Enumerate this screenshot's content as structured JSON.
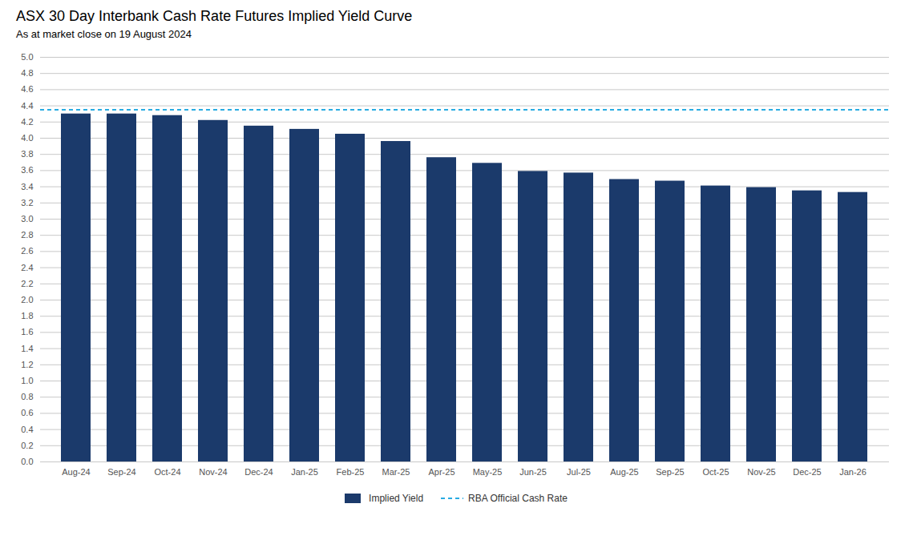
{
  "chart_data": {
    "type": "bar",
    "title": "ASX 30 Day Interbank Cash Rate Futures Implied Yield Curve",
    "subtitle": "As at market close on 19 August 2024",
    "categories": [
      "Aug-24",
      "Sep-24",
      "Oct-24",
      "Nov-24",
      "Dec-24",
      "Jan-25",
      "Feb-25",
      "Mar-25",
      "Apr-25",
      "May-25",
      "Jun-25",
      "Jul-25",
      "Aug-25",
      "Sep-25",
      "Oct-25",
      "Nov-25",
      "Dec-25",
      "Jan-26"
    ],
    "series": [
      {
        "name": "Implied Yield",
        "type": "bar",
        "color": "#1B3A6B",
        "values": [
          4.3,
          4.3,
          4.28,
          4.22,
          4.15,
          4.11,
          4.05,
          3.96,
          3.76,
          3.69,
          3.59,
          3.57,
          3.49,
          3.47,
          3.41,
          3.39,
          3.35,
          3.33
        ]
      },
      {
        "name": "RBA Official Cash Rate",
        "type": "line",
        "line_style": "dashed",
        "color": "#29ABE2",
        "values": [
          4.35,
          4.35,
          4.35,
          4.35,
          4.35,
          4.35,
          4.35,
          4.35,
          4.35,
          4.35,
          4.35,
          4.35,
          4.35,
          4.35,
          4.35,
          4.35,
          4.35,
          4.35
        ]
      }
    ],
    "ylim": [
      0.0,
      5.0
    ],
    "yticks": [
      {
        "value": 0,
        "label": "0.0"
      },
      0.2,
      0.4,
      0.6,
      0.8,
      {
        "value": 1,
        "label": "1.0"
      },
      1.2,
      1.4,
      1.6,
      1.8,
      {
        "value": 2,
        "label": "2.0"
      },
      2.2,
      2.4,
      2.6,
      2.8,
      {
        "value": 3,
        "label": "3.0"
      },
      3.2,
      3.4,
      3.6,
      3.8,
      {
        "value": 4,
        "label": "4.0"
      },
      4.2,
      4.4,
      4.6,
      4.8,
      {
        "value": 5,
        "label": "5.0"
      }
    ],
    "grid": true,
    "legend": "bottom"
  }
}
